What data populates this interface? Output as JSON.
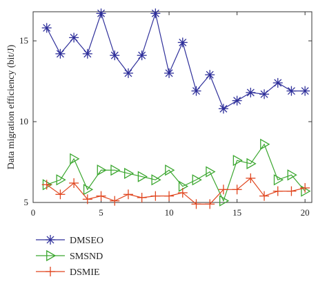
{
  "chart_data": {
    "type": "line",
    "title": "",
    "xlabel": "",
    "ylabel": "Data migration efficiency (bit/J)",
    "x": [
      1,
      2,
      3,
      4,
      5,
      6,
      7,
      8,
      9,
      10,
      11,
      12,
      13,
      14,
      15,
      16,
      17,
      18,
      19,
      20
    ],
    "xlim": [
      0,
      20.5
    ],
    "ylim": [
      5,
      16.8
    ],
    "xticks": [
      0,
      5,
      10,
      15,
      20
    ],
    "yticks": [
      5,
      10,
      15
    ],
    "xtick_labels": [
      "0",
      "5",
      "10",
      "15",
      "20"
    ],
    "ytick_labels": [
      "5",
      "10",
      "15"
    ],
    "grid": false,
    "legend_position": "bottom-left, below plot",
    "series": [
      {
        "name": "DMSEO",
        "color": "#2e2f9a",
        "marker": "asterisk",
        "values": [
          15.8,
          14.2,
          15.2,
          14.2,
          16.7,
          14.1,
          13.0,
          14.1,
          16.7,
          13.0,
          14.9,
          11.9,
          12.9,
          10.8,
          11.3,
          11.8,
          11.7,
          12.4,
          11.9,
          11.9
        ]
      },
      {
        "name": "SMSND",
        "color": "#3aa62e",
        "marker": "triangle-right",
        "values": [
          6.1,
          6.4,
          7.7,
          5.8,
          7.0,
          7.0,
          6.8,
          6.6,
          6.4,
          7.0,
          6.0,
          6.4,
          6.9,
          5.1,
          7.6,
          7.4,
          8.6,
          6.4,
          6.7,
          5.7
        ]
      },
      {
        "name": "DSMIE",
        "color": "#e0451e",
        "marker": "plus",
        "values": [
          6.1,
          5.5,
          6.2,
          5.2,
          5.4,
          5.1,
          5.5,
          5.3,
          5.4,
          5.4,
          5.6,
          4.9,
          4.9,
          5.8,
          5.8,
          6.5,
          5.4,
          5.7,
          5.7,
          5.9
        ]
      }
    ]
  }
}
